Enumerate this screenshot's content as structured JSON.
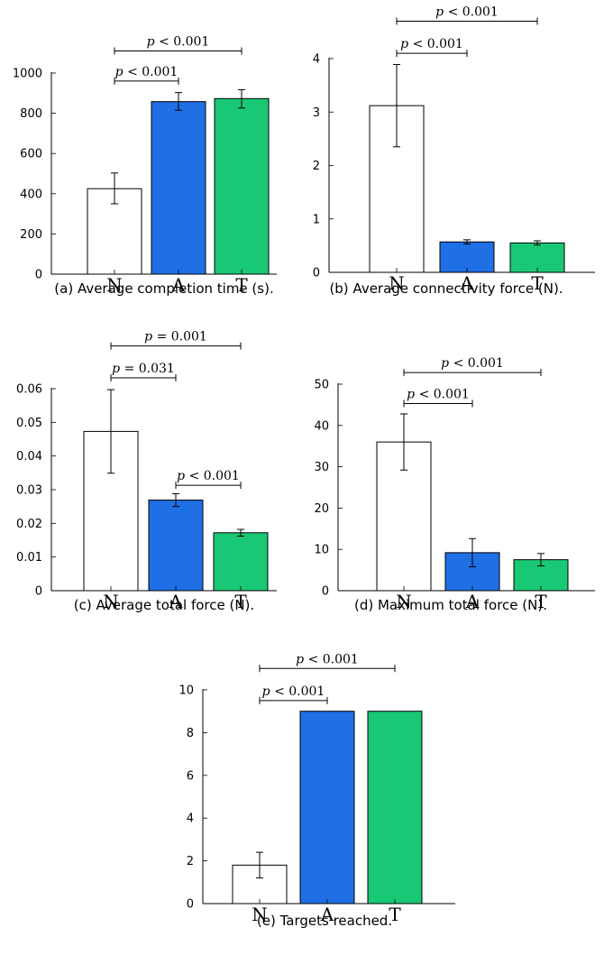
{
  "colors": {
    "N": "#ffffff",
    "A": "#1f6fe5",
    "T": "#19c874"
  },
  "chart_data": [
    {
      "type": "bar",
      "caption": "(a) Average completion time (s).",
      "categories": [
        "N",
        "A",
        "T"
      ],
      "values": [
        425,
        858,
        873
      ],
      "errors": [
        [
          350,
          503
        ],
        [
          815,
          903
        ],
        [
          826,
          917
        ]
      ],
      "ylim": [
        0,
        1000
      ],
      "yticks": [
        "0",
        "200",
        "400",
        "600",
        "800",
        "1000"
      ],
      "annotations": [
        {
          "from": 0,
          "to": 1,
          "label": "p < 0.001",
          "y": 960
        },
        {
          "from": 0,
          "to": 2,
          "label": "p < 0.001",
          "y": 1110
        }
      ]
    },
    {
      "type": "bar",
      "caption": "(b) Average connectivity force (N).",
      "categories": [
        "N",
        "A",
        "T"
      ],
      "values": [
        3.12,
        0.57,
        0.55
      ],
      "errors": [
        [
          2.35,
          3.89
        ],
        [
          0.53,
          0.61
        ],
        [
          0.51,
          0.59
        ]
      ],
      "ylim": [
        0,
        4
      ],
      "yticks": [
        "0",
        "1",
        "2",
        "3",
        "4"
      ],
      "annotations": [
        {
          "from": 0,
          "to": 1,
          "label": "p < 0.001",
          "y": 4.1
        },
        {
          "from": 0,
          "to": 2,
          "label": "p < 0.001",
          "y": 4.7
        }
      ]
    },
    {
      "type": "bar",
      "caption": "(c) Average total force (N).",
      "categories": [
        "N",
        "A",
        "T"
      ],
      "values": [
        0.0473,
        0.0269,
        0.0172
      ],
      "errors": [
        [
          0.0349,
          0.0597
        ],
        [
          0.025,
          0.0288
        ],
        [
          0.0162,
          0.0182
        ]
      ],
      "ylim": [
        0,
        0.06
      ],
      "yticks": [
        "0",
        "0.01",
        "0.02",
        "0.03",
        "0.04",
        "0.05",
        "0.06"
      ],
      "annotations": [
        {
          "from": 0,
          "to": 1,
          "label": "p = 0.031",
          "y": 0.0632
        },
        {
          "from": 0,
          "to": 2,
          "label": "p = 0.001",
          "y": 0.0727
        },
        {
          "from": 1,
          "to": 2,
          "label": "p < 0.001",
          "y": 0.0313
        }
      ]
    },
    {
      "type": "bar",
      "caption": "(d) Maximum total force (N).",
      "categories": [
        "N",
        "A",
        "T"
      ],
      "values": [
        36,
        9.2,
        7.5
      ],
      "errors": [
        [
          29.2,
          42.8
        ],
        [
          5.8,
          12.6
        ],
        [
          6,
          9
        ]
      ],
      "ylim": [
        0,
        50
      ],
      "yticks": [
        "0",
        "10",
        "20",
        "30",
        "40",
        "50"
      ],
      "annotations": [
        {
          "from": 0,
          "to": 1,
          "label": "p < 0.001",
          "y": 45.3
        },
        {
          "from": 0,
          "to": 2,
          "label": "p < 0.001",
          "y": 52.8
        }
      ]
    },
    {
      "type": "bar",
      "caption": "(e) Targets reached.",
      "categories": [
        "N",
        "A",
        "T"
      ],
      "values": [
        1.8,
        9,
        9
      ],
      "errors": [
        [
          1.2,
          2.4
        ],
        null,
        null
      ],
      "ylim": [
        0,
        10
      ],
      "yticks": [
        "0",
        "2",
        "4",
        "6",
        "8",
        "10"
      ],
      "annotations": [
        {
          "from": 0,
          "to": 1,
          "label": "p < 0.001",
          "y": 9.5
        },
        {
          "from": 0,
          "to": 2,
          "label": "p < 0.001",
          "y": 11.0
        }
      ]
    }
  ]
}
